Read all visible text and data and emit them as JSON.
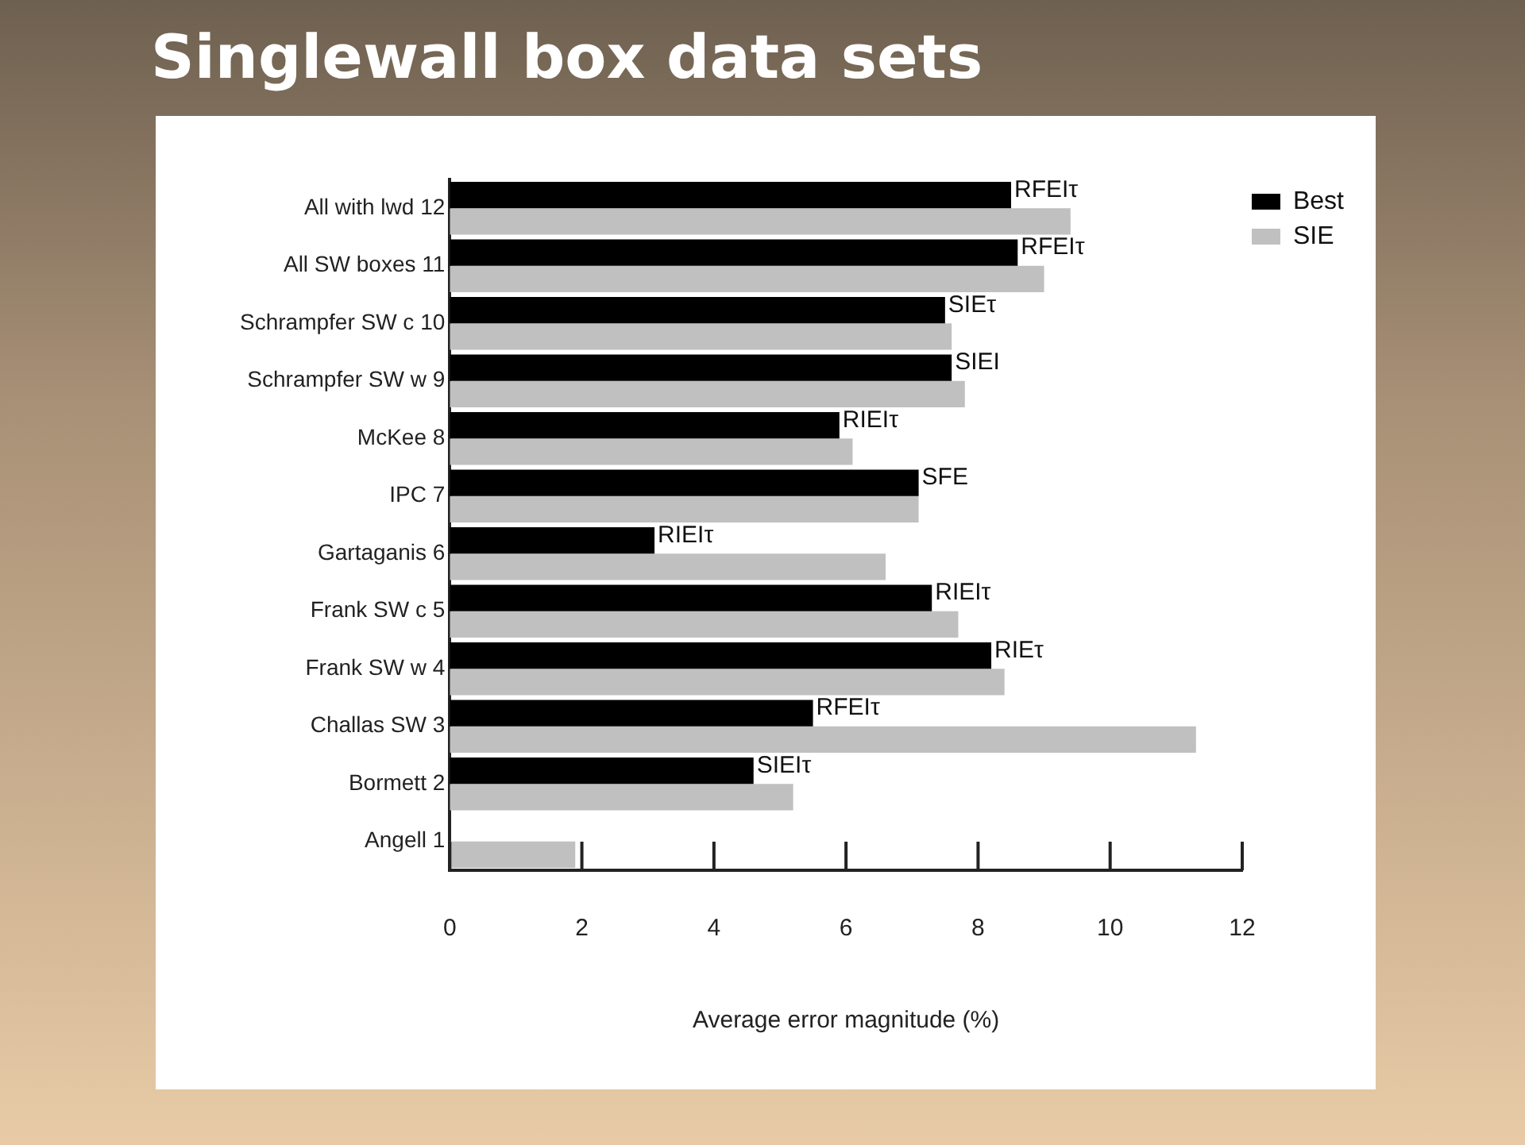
{
  "chart_data": {
    "type": "bar",
    "orientation": "horizontal",
    "title": "Singlewall box data sets",
    "xlabel": "Average error magnitude (%)",
    "categories": [
      "All with lwd 12",
      "All SW boxes 11",
      "Schrampfer SW c 10",
      "Schrampfer SW w 9",
      "McKee 8",
      "IPC 7",
      "Gartaganis 6",
      "Frank SW c 5",
      "Frank SW w 4",
      "Challas SW 3",
      "Bormett 2",
      "Angell 1"
    ],
    "series": [
      {
        "name": "Best",
        "color": "#000000",
        "values": [
          8.5,
          8.6,
          7.5,
          7.6,
          5.9,
          7.1,
          3.1,
          7.3,
          8.2,
          5.5,
          4.6,
          null
        ],
        "value_labels": [
          "RFEIτ",
          "RFEIτ",
          "SIEτ",
          "SIEI",
          "RIEIτ",
          "SFE",
          "RIEIτ",
          "RIEIτ",
          "RIEτ",
          "RFEIτ",
          "SIEIτ",
          null
        ]
      },
      {
        "name": "SIE",
        "color": "#c0c0c0",
        "values": [
          9.4,
          9.0,
          7.6,
          7.8,
          6.1,
          7.1,
          6.6,
          7.7,
          8.4,
          11.3,
          5.2,
          1.9
        ]
      }
    ],
    "xlim": [
      0,
      12
    ],
    "xticks": [
      0,
      2,
      4,
      6,
      8,
      10,
      12
    ],
    "grid": false,
    "legend": "top right"
  }
}
